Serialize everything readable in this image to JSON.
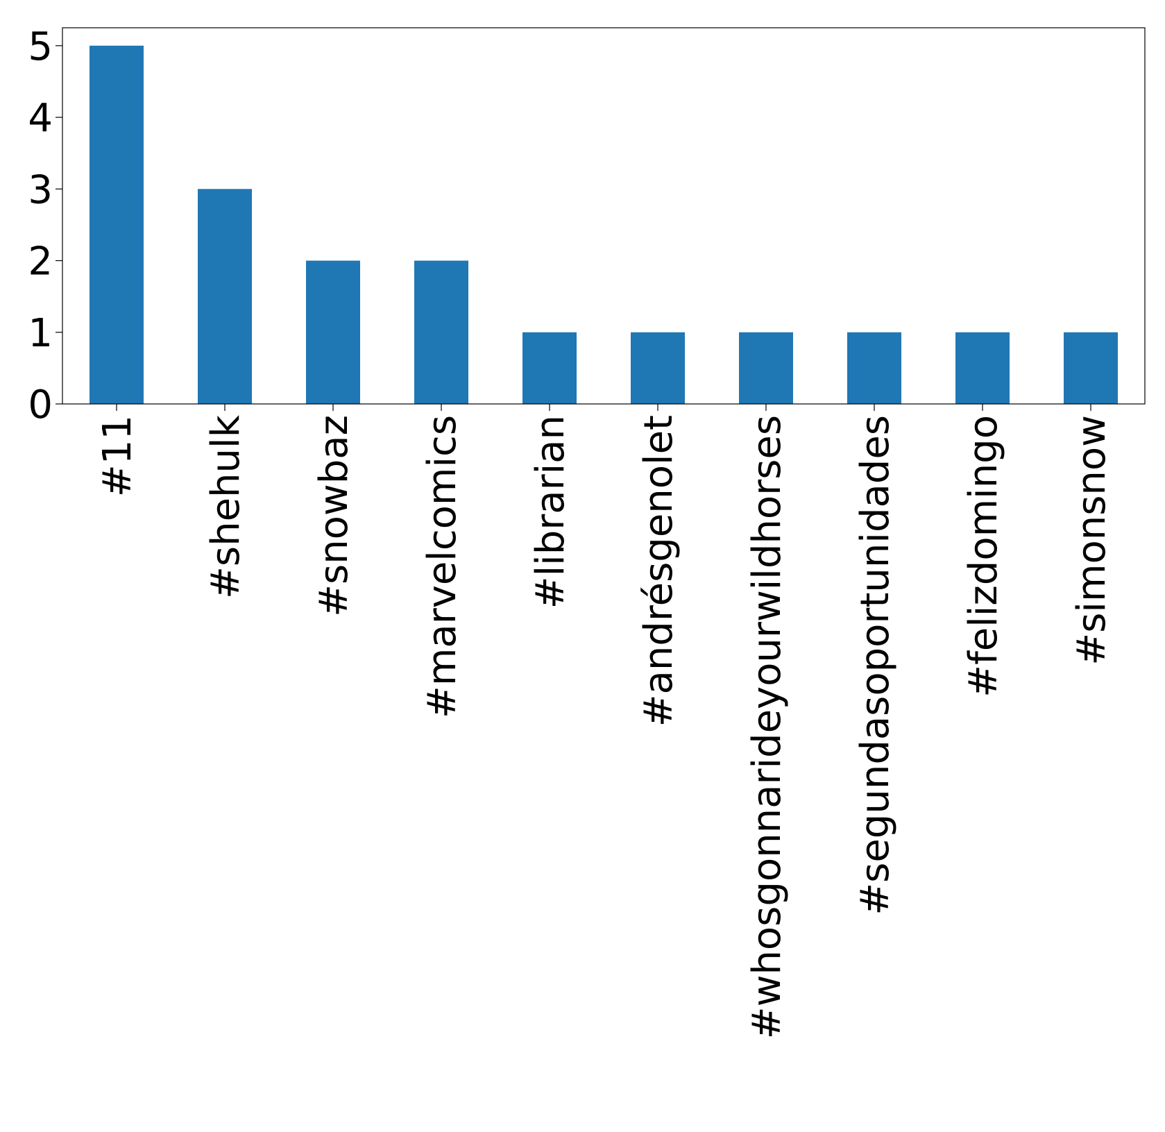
{
  "chart_data": {
    "type": "bar",
    "title": "",
    "xlabel": "",
    "ylabel": "",
    "categories": [
      "#11",
      "#shehulk",
      "#snowbaz",
      "#marvelcomics",
      "#librarian",
      "#andrésgenolet",
      "#whosgonnarideyourwildhorses",
      "#segundasoportunidades",
      "#felizdomingo",
      "#simonsnow"
    ],
    "values": [
      5,
      3,
      2,
      2,
      1,
      1,
      1,
      1,
      1,
      1
    ],
    "ylim": [
      0,
      5.25
    ],
    "yticks": [
      0,
      1,
      2,
      3,
      4,
      5
    ],
    "grid": false,
    "legend": "none",
    "bar_color": "#1f77b4"
  }
}
